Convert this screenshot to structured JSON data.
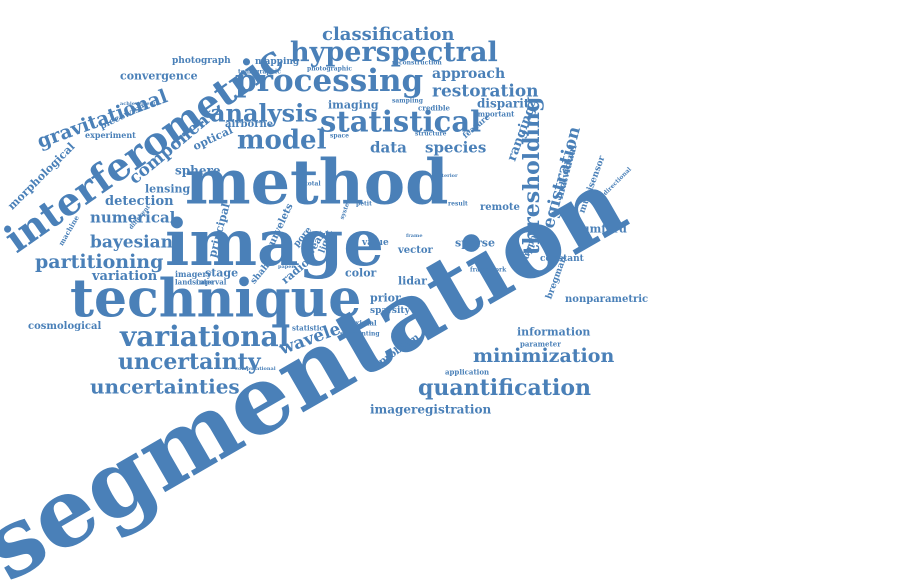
{
  "theme": {
    "word_color": "#4a80b8",
    "background": "#ffffff"
  },
  "words": [
    "segmentation",
    "method",
    "image",
    "technique",
    "interferometric",
    "processing",
    "hyperspectral",
    "statistical",
    "variational",
    "analysis",
    "model",
    "thresholding",
    "uncertainty",
    "uncertainties",
    "quantification",
    "minimization",
    "classification",
    "gravitational",
    "partitioning",
    "bayesian",
    "registration",
    "restoration",
    "component",
    "wavelet",
    "numerical",
    "species",
    "data",
    "approach",
    "imageregistration",
    "detection",
    "information",
    "sphere",
    "lensing",
    "variation",
    "ranging",
    "convergence",
    "morphological",
    "cosmological",
    "disparity",
    "imaging",
    "nonparametric",
    "mumford",
    "airborne",
    "optical",
    "stage",
    "radio",
    "color",
    "lidar",
    "prior",
    "sparse",
    "remote",
    "vector",
    "problem",
    "curvelets",
    "principal",
    "mapping",
    "photograph",
    "piecewise",
    "experiment",
    "individual",
    "multisensor",
    "bregman",
    "constant",
    "support",
    "sparsity",
    "value",
    "weak",
    "light",
    "pore",
    "shah",
    "imagery",
    "landscape",
    "interval",
    "statistic",
    "proximal",
    "segmenting",
    "parameter",
    "application",
    "important",
    "credible",
    "sampling",
    "reconstruction",
    "photographic",
    "tomographic",
    "space",
    "structure",
    "feature",
    "achievement",
    "machine",
    "total",
    "petit",
    "different",
    "directional",
    "computational",
    "framework",
    "result",
    "posterior",
    "system",
    "frame",
    "paper"
  ]
}
